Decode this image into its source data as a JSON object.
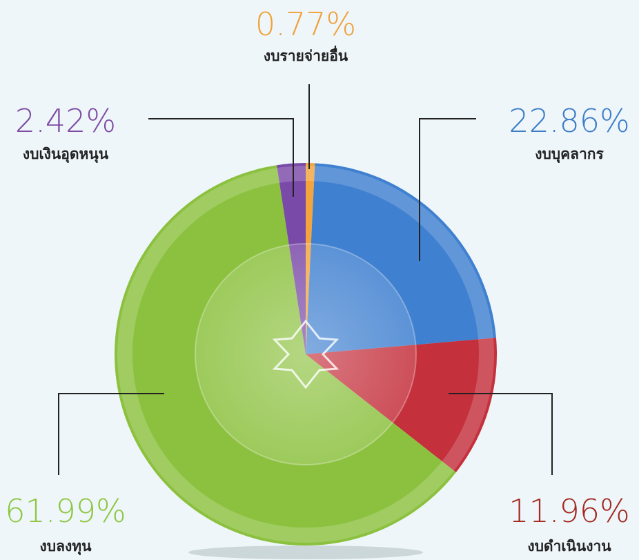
{
  "chart_data": {
    "type": "pie",
    "categories": [
      "งบรายจ่ายอื่น",
      "งบบุคลากร",
      "งบดำเนินงาน",
      "งบลงทุน",
      "งบเงินอุดหนุน"
    ],
    "values": [
      0.77,
      22.86,
      11.96,
      61.99,
      2.42
    ],
    "value_labels": [
      "0.77%",
      "22.86%",
      "11.96%",
      "61.99%",
      "2.42%"
    ],
    "colors": [
      "#f3a43c",
      "#3f80d0",
      "#c4303c",
      "#8cc13f",
      "#7a4aa8"
    ],
    "label_colors": [
      "#f0a13a",
      "#3d7dc8",
      "#a3281f",
      "#8dc63f",
      "#7d4ba3"
    ]
  }
}
